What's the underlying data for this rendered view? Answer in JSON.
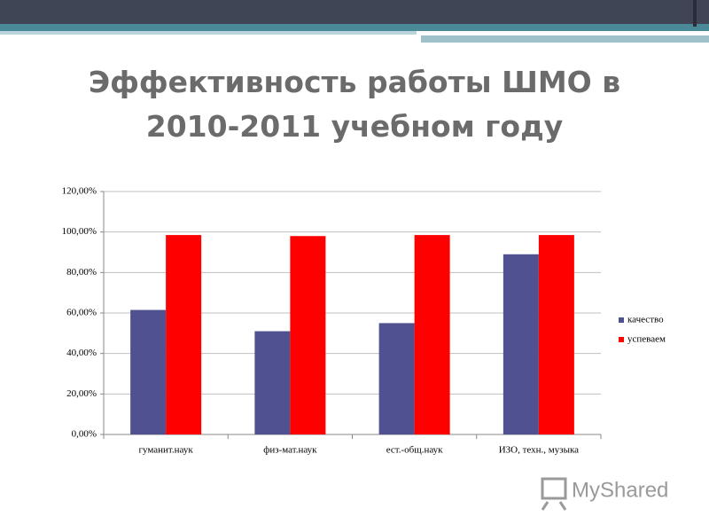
{
  "chart_data": {
    "type": "bar",
    "title": "Эффективность работы ШМО в 2010-2011 учебном году",
    "categories": [
      "гуманит.наук",
      "физ-мат.наук",
      "ест.-общ.наук",
      "ИЗО, техн., музыка"
    ],
    "series": [
      {
        "name": "качество",
        "color": "#4f5190",
        "values": [
          61.5,
          51,
          55,
          89
        ]
      },
      {
        "name": "успеваем",
        "color": "#ff0000",
        "values": [
          98.5,
          98,
          98.5,
          98.5
        ]
      }
    ],
    "ylim": [
      0,
      120
    ],
    "yticks": [
      {
        "value": 0,
        "label": "0,00%"
      },
      {
        "value": 20,
        "label": "20,00%"
      },
      {
        "value": 40,
        "label": "40,00%"
      },
      {
        "value": 60,
        "label": "60,00%"
      },
      {
        "value": 80,
        "label": "80,00%"
      },
      {
        "value": 100,
        "label": "100,00%"
      },
      {
        "value": 120,
        "label": "120,00%"
      }
    ],
    "grid": true,
    "legend": "right"
  },
  "watermark": "MyShared"
}
